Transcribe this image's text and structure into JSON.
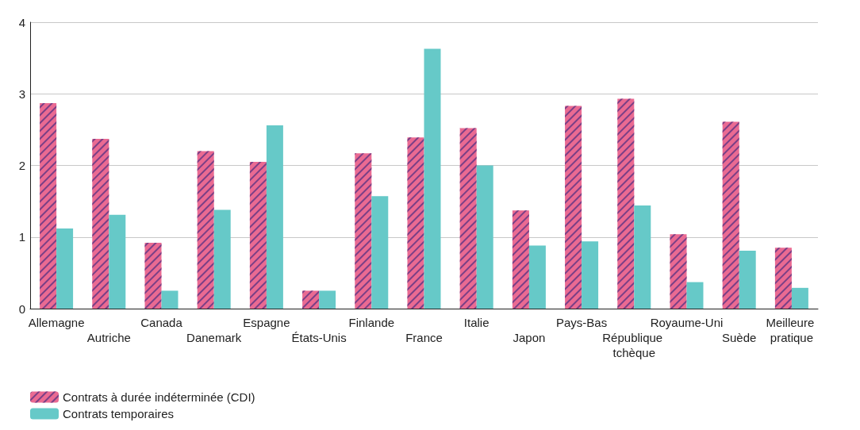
{
  "chart_data": {
    "type": "bar",
    "categories": [
      "Allemagne",
      "Autriche",
      "Canada",
      "Danemark",
      "Espagne",
      "États-Unis",
      "Finlande",
      "France",
      "Italie",
      "Japon",
      "Pays-Bas",
      "République tchèque",
      "Royaume-Uni",
      "Suède",
      "Meilleure pratique"
    ],
    "series": [
      {
        "name": "Contrats à durée indéterminée (CDI)",
        "color": "#ea6a92",
        "values": [
          2.87,
          2.37,
          0.92,
          2.2,
          2.05,
          0.25,
          2.17,
          2.39,
          2.52,
          1.37,
          2.83,
          2.93,
          1.04,
          2.61,
          0.85
        ]
      },
      {
        "name": "Contrats temporaires",
        "color": "#66c9c8",
        "values": [
          1.12,
          1.31,
          0.25,
          1.38,
          2.56,
          0.25,
          1.57,
          3.63,
          2.0,
          0.88,
          0.94,
          1.44,
          0.37,
          0.81,
          0.29
        ]
      }
    ],
    "ylim": [
      0,
      4
    ],
    "yticks": [
      0,
      1,
      2,
      3,
      4
    ],
    "grid": "y",
    "legend": "bottom left"
  }
}
